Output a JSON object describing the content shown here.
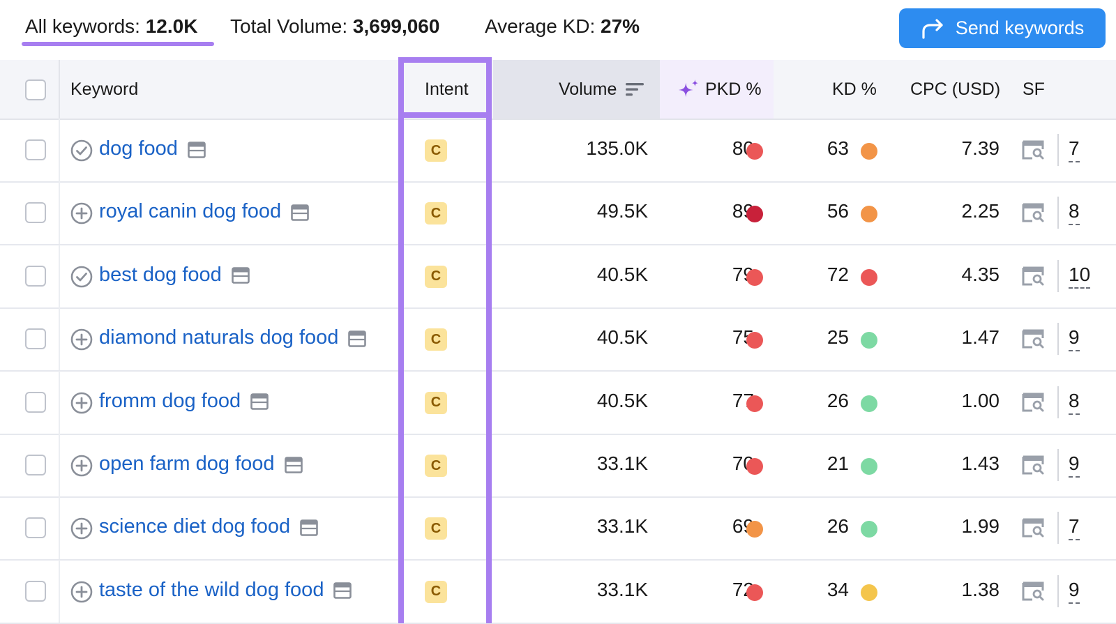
{
  "stats": {
    "all_keywords_label": "All keywords:",
    "all_keywords_value": "12.0K",
    "total_volume_label": "Total Volume:",
    "total_volume_value": "3,699,060",
    "avg_kd_label": "Average KD:",
    "avg_kd_value": "27%"
  },
  "send_button": {
    "label": "Send keywords",
    "icon": "share-arrow-icon",
    "color": "#2d8cf0"
  },
  "accent_color": "#a77ef0",
  "headers": {
    "keyword": "Keyword",
    "intent": "Intent",
    "volume": "Volume",
    "pkd": "PKD %",
    "kd": "KD %",
    "cpc": "CPC (USD)",
    "sf": "SF"
  },
  "difficulty_colors": {
    "red": "#eb5757",
    "dark_red": "#c8213a",
    "orange": "#f29447",
    "green": "#7dd9a3",
    "yellow": "#f4c54c"
  },
  "rows": [
    {
      "keyword": "dog food",
      "status_icon": "check-circle-icon",
      "intent": "C",
      "volume": "135.0K",
      "pkd": "80",
      "pkd_color": "red",
      "kd": "63",
      "kd_color": "orange",
      "cpc": "7.39",
      "sf": "7"
    },
    {
      "keyword": "royal canin dog food",
      "status_icon": "plus-circle-icon",
      "intent": "C",
      "volume": "49.5K",
      "pkd": "89",
      "pkd_color": "dark_red",
      "kd": "56",
      "kd_color": "orange",
      "cpc": "2.25",
      "sf": "8"
    },
    {
      "keyword": "best dog food",
      "status_icon": "check-circle-icon",
      "intent": "C",
      "volume": "40.5K",
      "pkd": "79",
      "pkd_color": "red",
      "kd": "72",
      "kd_color": "red",
      "cpc": "4.35",
      "sf": "10"
    },
    {
      "keyword": "diamond naturals dog food",
      "status_icon": "plus-circle-icon",
      "intent": "C",
      "volume": "40.5K",
      "pkd": "75",
      "pkd_color": "red",
      "kd": "25",
      "kd_color": "green",
      "cpc": "1.47",
      "sf": "9"
    },
    {
      "keyword": "fromm dog food",
      "status_icon": "plus-circle-icon",
      "intent": "C",
      "volume": "40.5K",
      "pkd": "77",
      "pkd_color": "red",
      "kd": "26",
      "kd_color": "green",
      "cpc": "1.00",
      "sf": "8"
    },
    {
      "keyword": "open farm dog food",
      "status_icon": "plus-circle-icon",
      "intent": "C",
      "volume": "33.1K",
      "pkd": "70",
      "pkd_color": "red",
      "kd": "21",
      "kd_color": "green",
      "cpc": "1.43",
      "sf": "9"
    },
    {
      "keyword": "science diet dog food",
      "status_icon": "plus-circle-icon",
      "intent": "C",
      "volume": "33.1K",
      "pkd": "69",
      "pkd_color": "orange",
      "kd": "26",
      "kd_color": "green",
      "cpc": "1.99",
      "sf": "7"
    },
    {
      "keyword": "taste of the wild dog food",
      "status_icon": "plus-circle-icon",
      "intent": "C",
      "volume": "33.1K",
      "pkd": "72",
      "pkd_color": "red",
      "kd": "34",
      "kd_color": "yellow",
      "cpc": "1.38",
      "sf": "9"
    }
  ]
}
